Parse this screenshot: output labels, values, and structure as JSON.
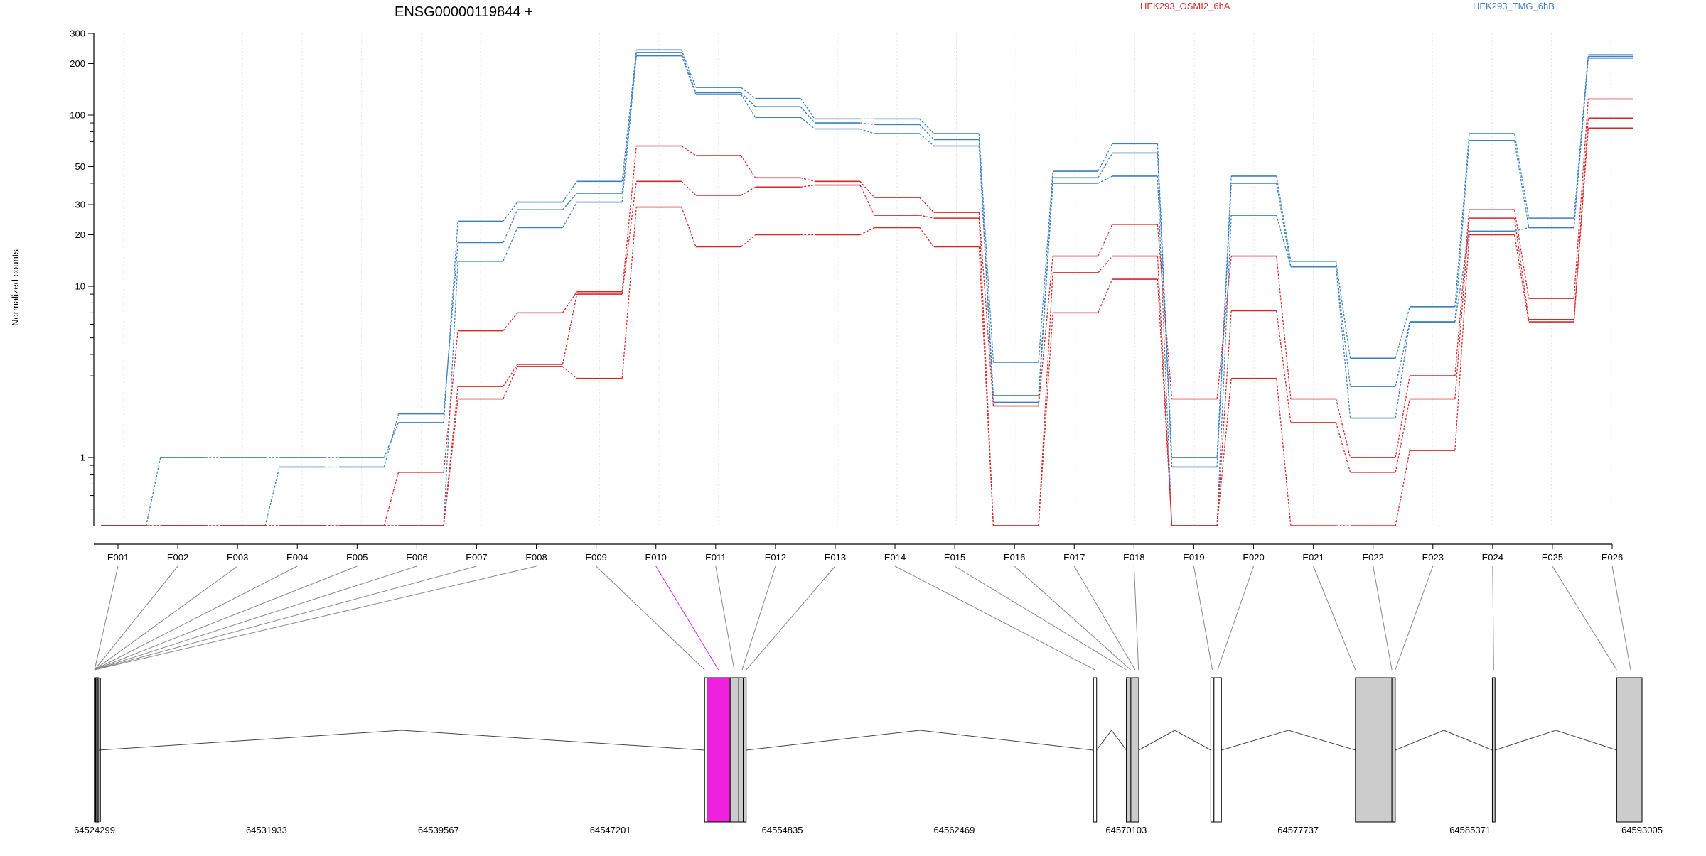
{
  "chart_data": {
    "type": "line",
    "title": "ENSG00000119844 +",
    "ylabel": "Normalized counts",
    "y_scale": "log",
    "ylim": [
      0.4,
      300
    ],
    "y_ticks": [
      1,
      10,
      20,
      30,
      50,
      100,
      200,
      300
    ],
    "y_tick_labels": [
      "1",
      "10",
      "20",
      "30",
      "50",
      "100",
      "200",
      "300"
    ],
    "grid": "vertical dotted",
    "legend": [
      {
        "name": "HEK293_OSMI2_6hA",
        "color": "#d62728"
      },
      {
        "name": "HEK293_TMG_6hB",
        "color": "#3a7fc1"
      }
    ],
    "categories": [
      "E001",
      "E002",
      "E003",
      "E004",
      "E005",
      "E006",
      "E007",
      "E008",
      "E009",
      "E010",
      "E011",
      "E012",
      "E013",
      "E014",
      "E015",
      "E016",
      "E017",
      "E018",
      "E019",
      "E020",
      "E021",
      "E022",
      "E023",
      "E024",
      "E025",
      "E026"
    ],
    "series": [
      {
        "group": "HEK293_TMG_6hB",
        "color": "#3a7fc1",
        "values": [
          0.4,
          1.0,
          1.0,
          1.0,
          1.0,
          1.6,
          24,
          31,
          41,
          240,
          145,
          125,
          95,
          95,
          78,
          3.6,
          47,
          68,
          1.0,
          44,
          14,
          3.8,
          7.6,
          78,
          25,
          225
        ]
      },
      {
        "group": "HEK293_TMG_6hB",
        "color": "#3a7fc1",
        "values": [
          0.4,
          0.4,
          0.4,
          0.88,
          0.88,
          1.8,
          18,
          28,
          35,
          232,
          135,
          112,
          90,
          88,
          72,
          2.3,
          43,
          60,
          0.88,
          40,
          13,
          2.6,
          6.2,
          71,
          22,
          220
        ]
      },
      {
        "group": "HEK293_TMG_6hB",
        "color": "#3a7fc1",
        "values": [
          0.4,
          0.4,
          0.4,
          0.4,
          0.4,
          0.4,
          14,
          22,
          31,
          222,
          132,
          97,
          83,
          78,
          66,
          2.1,
          40,
          44,
          0.4,
          26,
          13,
          1.7,
          6.2,
          21,
          22,
          215
        ]
      },
      {
        "group": "HEK293_OSMI2_6hA",
        "color": "#d62728",
        "values": [
          0.4,
          0.4,
          0.4,
          0.4,
          0.4,
          0.82,
          5.5,
          7.0,
          9.3,
          66,
          58,
          43,
          41,
          33,
          27,
          2.0,
          15,
          23,
          2.2,
          15,
          2.2,
          1.0,
          3.0,
          28,
          8.5,
          124
        ]
      },
      {
        "group": "HEK293_OSMI2_6hA",
        "color": "#d62728",
        "values": [
          0.4,
          0.4,
          0.4,
          0.4,
          0.4,
          0.4,
          2.6,
          3.5,
          9.0,
          41,
          34,
          38,
          39,
          26,
          25,
          0.4,
          12,
          15,
          0.4,
          7.2,
          1.6,
          0.82,
          2.2,
          25,
          6.4,
          96
        ]
      },
      {
        "group": "HEK293_OSMI2_6hA",
        "color": "#d62728",
        "values": [
          0.4,
          0.4,
          0.4,
          0.4,
          0.4,
          0.4,
          2.2,
          3.4,
          2.9,
          29,
          17,
          20,
          20,
          22,
          17,
          0.4,
          7.0,
          11,
          0.4,
          2.9,
          0.4,
          0.4,
          1.1,
          20,
          6.2,
          84
        ]
      }
    ],
    "gene_model": {
      "coordinate_labels": [
        "64524299",
        "64531933",
        "64539567",
        "64547201",
        "64554835",
        "64562469",
        "64570103",
        "64577737",
        "64585371",
        "64593005"
      ],
      "highlight_exon": "E010",
      "highlight_color": "#ee22dd",
      "exon_fill": "#cccccc"
    }
  }
}
